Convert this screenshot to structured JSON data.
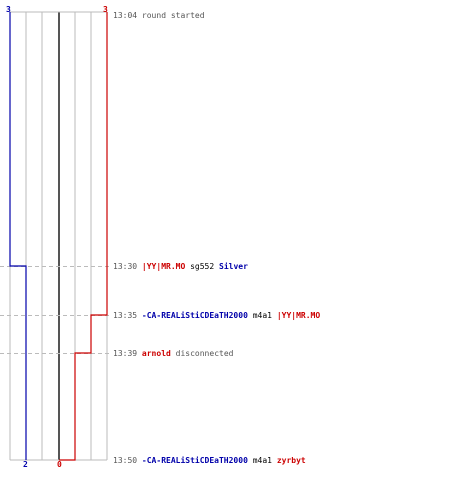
{
  "team_colors": {
    "blue": "#0000aa",
    "red": "#cc0000"
  },
  "score_labels": {
    "blue_start": "3",
    "red_start": "3",
    "blue_end": "2",
    "red_end": "0"
  },
  "events": [
    {
      "time": "13:04",
      "parts": [
        {
          "text": "round started",
          "style": "gray"
        }
      ]
    },
    {
      "time": "13:30",
      "parts": [
        {
          "text": "|YY|MR.MO",
          "style": "red"
        },
        {
          "text": "sg552",
          "style": "dark"
        },
        {
          "text": "Silver",
          "style": "blue"
        }
      ]
    },
    {
      "time": "13:35",
      "parts": [
        {
          "text": "-CA-REALiStiCDEaTH2000",
          "style": "blue"
        },
        {
          "text": "m4a1",
          "style": "dark"
        },
        {
          "text": "|YY|MR.MO",
          "style": "red"
        }
      ]
    },
    {
      "time": "13:39",
      "parts": [
        {
          "text": "arnold",
          "style": "red"
        },
        {
          "text": "disconnected",
          "style": "gray"
        }
      ]
    },
    {
      "time": "13:50",
      "parts": [
        {
          "text": "-CA-REALiStiCDEaTH2000",
          "style": "blue"
        },
        {
          "text": "m4a1",
          "style": "dark"
        },
        {
          "text": "zyrbyt",
          "style": "red"
        }
      ]
    }
  ]
}
